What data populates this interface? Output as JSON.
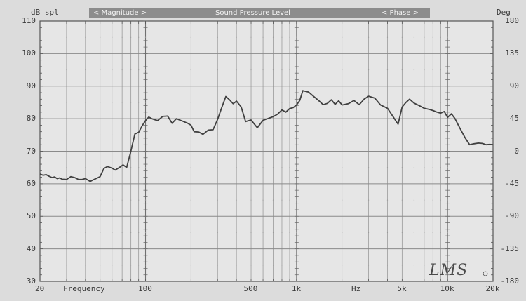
{
  "chart_data": {
    "type": "line",
    "title": "Sound Pressure Level",
    "header": {
      "left_unit": "dB spl",
      "magnitude_label": "< Magnitude >",
      "title": "Sound Pressure Level",
      "phase_label": "< Phase >",
      "right_unit": "Deg"
    },
    "xlabel": "Frequency",
    "x_unit_label": "Hz",
    "x_scale": "log",
    "xlim": [
      20,
      20000
    ],
    "ylim": [
      30,
      110
    ],
    "y2lim": [
      -180,
      180
    ],
    "x_tick_labels": [
      {
        "value": 20,
        "label": "20"
      },
      {
        "value": 100,
        "label": "100"
      },
      {
        "value": 500,
        "label": "500"
      },
      {
        "value": 1000,
        "label": "1k"
      },
      {
        "value": 5000,
        "label": "5k"
      },
      {
        "value": 10000,
        "label": "10k"
      },
      {
        "value": 20000,
        "label": "20k"
      }
    ],
    "y_tick_labels": [
      "30",
      "40",
      "50",
      "60",
      "70",
      "80",
      "90",
      "100",
      "110"
    ],
    "y2_tick_labels": [
      "-180",
      "-135",
      "-90",
      "-45",
      "0",
      "45",
      "90",
      "135",
      "180"
    ],
    "grid": true,
    "logo": "LMS",
    "series": [
      {
        "color": "#404040",
        "x": [
          20,
          21,
          22,
          23,
          24,
          25,
          26,
          27,
          28,
          30,
          32,
          34,
          36,
          38,
          40,
          43,
          45,
          47,
          50,
          53,
          56,
          60,
          63,
          67,
          71,
          75,
          80,
          85,
          90,
          95,
          100,
          105,
          110,
          120,
          130,
          140,
          150,
          160,
          175,
          190,
          200,
          210,
          225,
          240,
          260,
          280,
          300,
          320,
          340,
          360,
          380,
          400,
          430,
          460,
          500,
          550,
          600,
          650,
          700,
          750,
          800,
          850,
          900,
          950,
          1000,
          1050,
          1100,
          1200,
          1300,
          1400,
          1500,
          1600,
          1700,
          1800,
          1900,
          2000,
          2200,
          2400,
          2600,
          2800,
          3000,
          3300,
          3600,
          4000,
          4300,
          4700,
          5000,
          5300,
          5600,
          6000,
          6500,
          7000,
          7500,
          8000,
          8500,
          9000,
          9500,
          10000,
          10600,
          11200,
          12000,
          13000,
          14000,
          15000,
          16000,
          17000,
          18000,
          19000,
          20000
        ],
        "y": [
          63,
          62.6,
          62.8,
          62.3,
          61.9,
          62.1,
          61.6,
          61.8,
          61.4,
          61.3,
          62.2,
          61.9,
          61.3,
          61.3,
          61.6,
          60.7,
          61.2,
          61.6,
          62.2,
          64.7,
          65.3,
          64.8,
          64.2,
          65.0,
          65.8,
          65.0,
          70.0,
          75.3,
          75.8,
          77.8,
          79.4,
          80.5,
          80.0,
          79.4,
          80.7,
          80.8,
          78.6,
          80.0,
          79.3,
          78.6,
          78.0,
          76.0,
          75.9,
          75.2,
          76.5,
          76.6,
          79.8,
          83.5,
          86.8,
          85.8,
          84.6,
          85.4,
          83.6,
          79.1,
          79.6,
          77.2,
          79.5,
          80.1,
          80.6,
          81.4,
          82.7,
          82.0,
          83.1,
          83.4,
          84.2,
          85.6,
          88.6,
          88.2,
          86.8,
          85.6,
          84.3,
          84.7,
          85.8,
          84.4,
          85.5,
          84.2,
          84.6,
          85.6,
          84.3,
          86.0,
          86.9,
          86.3,
          84.2,
          83.2,
          81.0,
          78.3,
          83.6,
          85.0,
          86.0,
          84.8,
          84.0,
          83.2,
          82.9,
          82.5,
          82.0,
          81.7,
          82.2,
          80.4,
          81.5,
          80.0,
          77.3,
          74.3,
          72.0,
          72.3,
          72.5,
          72.4,
          72.0,
          72.1,
          72.0
        ]
      }
    ]
  }
}
